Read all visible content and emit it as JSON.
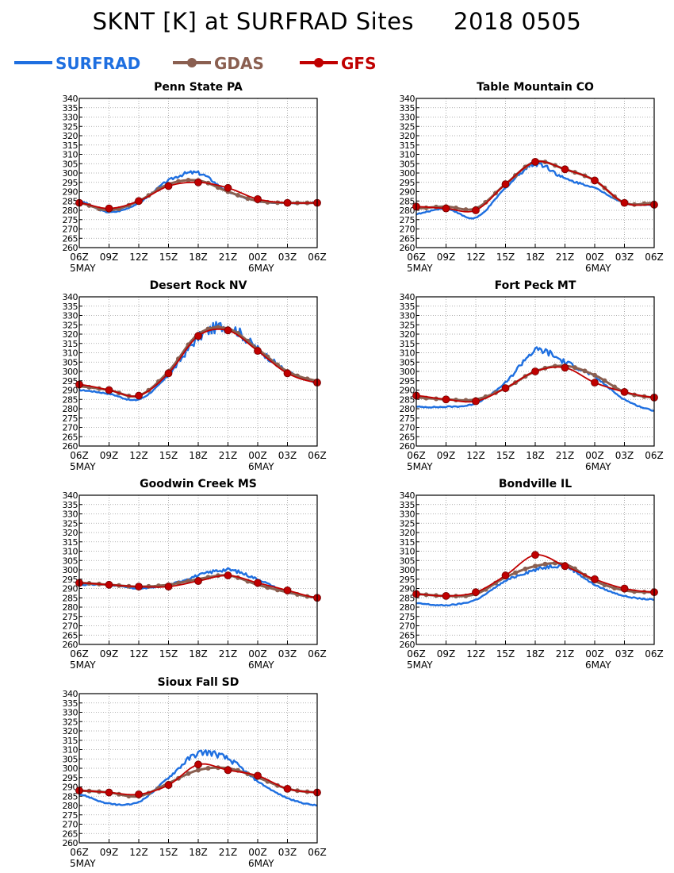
{
  "title": {
    "main": "SKNT [K] at SURFRAD Sites",
    "date": "2018 0505"
  },
  "legend": {
    "items": [
      {
        "name": "SURFRAD",
        "color": "#1e6fe0"
      },
      {
        "name": "GDAS",
        "color": "#8a5f50"
      },
      {
        "name": "GFS",
        "color": "#c00000"
      }
    ]
  },
  "axes": {
    "x_ticks": [
      "06Z",
      "09Z",
      "12Z",
      "15Z",
      "18Z",
      "21Z",
      "00Z",
      "03Z",
      "06Z"
    ],
    "x_sub": [
      {
        "tick": 0,
        "label": "5MAY"
      },
      {
        "tick": 6,
        "label": "6MAY"
      }
    ],
    "y_ticks": [
      "260",
      "265",
      "270",
      "275",
      "280",
      "285",
      "290",
      "295",
      "300",
      "305",
      "310",
      "315",
      "320",
      "325",
      "330",
      "335",
      "340"
    ],
    "ylim": [
      260,
      340
    ],
    "grid": true
  },
  "chart_data": [
    {
      "type": "line",
      "title": "Penn State PA",
      "x": [
        "06Z",
        "09Z",
        "12Z",
        "15Z",
        "18Z",
        "21Z",
        "00Z",
        "03Z",
        "06Z"
      ],
      "series": [
        {
          "name": "SURFRAD",
          "values": [
            285,
            279,
            284,
            296,
            300,
            290,
            285,
            284,
            284
          ]
        },
        {
          "name": "GDAS",
          "values": [
            284,
            280,
            285,
            294,
            296,
            290,
            285,
            284,
            284
          ]
        },
        {
          "name": "GFS",
          "values": [
            284,
            281,
            285,
            293,
            295,
            292,
            286,
            284,
            284
          ]
        }
      ]
    },
    {
      "type": "line",
      "title": "Table Mountain CO",
      "x": [
        "06Z",
        "09Z",
        "12Z",
        "15Z",
        "18Z",
        "21Z",
        "00Z",
        "03Z",
        "06Z"
      ],
      "series": [
        {
          "name": "SURFRAD",
          "values": [
            278,
            281,
            276,
            292,
            305,
            297,
            292,
            284,
            283
          ]
        },
        {
          "name": "GDAS",
          "values": [
            281,
            282,
            281,
            294,
            306,
            302,
            296,
            284,
            284
          ]
        },
        {
          "name": "GFS",
          "values": [
            282,
            281,
            280,
            294,
            306,
            302,
            296,
            284,
            283
          ]
        }
      ]
    },
    {
      "type": "line",
      "title": "Desert Rock NV",
      "x": [
        "06Z",
        "09Z",
        "12Z",
        "15Z",
        "18Z",
        "21Z",
        "00Z",
        "03Z",
        "06Z"
      ],
      "series": [
        {
          "name": "SURFRAD",
          "values": [
            290,
            288,
            285,
            298,
            318,
            324,
            312,
            300,
            294
          ]
        },
        {
          "name": "GDAS",
          "values": [
            292,
            290,
            287,
            300,
            320,
            323,
            312,
            300,
            295
          ]
        },
        {
          "name": "GFS",
          "values": [
            293,
            290,
            287,
            299,
            319,
            322,
            311,
            299,
            294
          ]
        }
      ]
    },
    {
      "type": "line",
      "title": "Fort Peck MT",
      "x": [
        "06Z",
        "09Z",
        "12Z",
        "15Z",
        "18Z",
        "21Z",
        "00Z",
        "03Z",
        "06Z"
      ],
      "series": [
        {
          "name": "SURFRAD",
          "values": [
            281,
            281,
            283,
            294,
            311,
            305,
            297,
            285,
            279
          ]
        },
        {
          "name": "GDAS",
          "values": [
            286,
            285,
            285,
            291,
            300,
            303,
            298,
            289,
            286
          ]
        },
        {
          "name": "GFS",
          "values": [
            287,
            285,
            284,
            291,
            300,
            302,
            294,
            289,
            286
          ]
        }
      ]
    },
    {
      "type": "line",
      "title": "Goodwin Creek MS",
      "x": [
        "06Z",
        "09Z",
        "12Z",
        "15Z",
        "18Z",
        "21Z",
        "00Z",
        "03Z",
        "06Z"
      ],
      "series": [
        {
          "name": "SURFRAD",
          "values": [
            292,
            292,
            290,
            292,
            297,
            300,
            295,
            288,
            285
          ]
        },
        {
          "name": "GDAS",
          "values": [
            293,
            292,
            291,
            292,
            295,
            297,
            292,
            288,
            285
          ]
        },
        {
          "name": "GFS",
          "values": [
            293,
            292,
            291,
            291,
            294,
            297,
            293,
            289,
            285
          ]
        }
      ]
    },
    {
      "type": "line",
      "title": "Bondville IL",
      "x": [
        "06Z",
        "09Z",
        "12Z",
        "15Z",
        "18Z",
        "21Z",
        "00Z",
        "03Z",
        "06Z"
      ],
      "series": [
        {
          "name": "SURFRAD",
          "values": [
            282,
            281,
            284,
            294,
            300,
            302,
            292,
            286,
            284
          ]
        },
        {
          "name": "GDAS",
          "values": [
            287,
            286,
            287,
            296,
            302,
            303,
            294,
            289,
            288
          ]
        },
        {
          "name": "GFS",
          "values": [
            287,
            286,
            288,
            297,
            308,
            302,
            295,
            290,
            288
          ]
        }
      ]
    },
    {
      "type": "line",
      "title": "Sioux Fall SD",
      "x": [
        "06Z",
        "09Z",
        "12Z",
        "15Z",
        "18Z",
        "21Z",
        "00Z",
        "03Z",
        "06Z"
      ],
      "series": [
        {
          "name": "SURFRAD",
          "values": [
            286,
            281,
            282,
            295,
            308,
            305,
            293,
            284,
            280
          ]
        },
        {
          "name": "GDAS",
          "values": [
            288,
            287,
            285,
            292,
            299,
            300,
            295,
            289,
            287
          ]
        },
        {
          "name": "GFS",
          "values": [
            288,
            287,
            286,
            291,
            302,
            299,
            296,
            289,
            287
          ]
        }
      ]
    }
  ]
}
